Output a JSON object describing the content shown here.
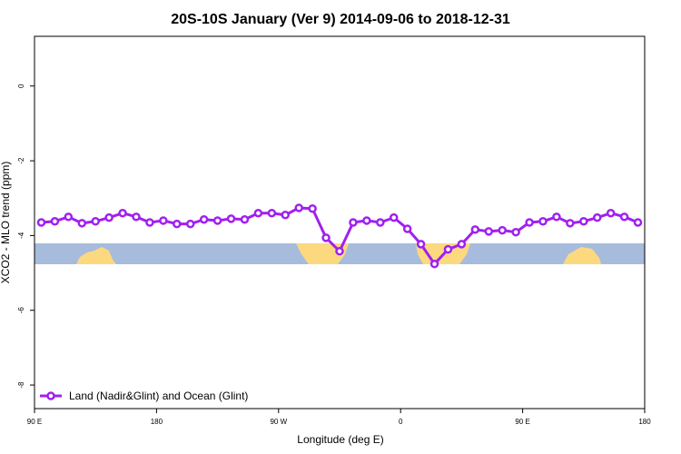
{
  "chart_data": {
    "type": "line",
    "title": "20S-10S January (Ver 9)   2014-09-06 to 2018-12-31",
    "x_label": "Longitude (deg E)",
    "y_label": "XCO2 - MLO trend (ppm)",
    "x": [
      95,
      105,
      115,
      125,
      135,
      145,
      155,
      165,
      175,
      185,
      195,
      205,
      215,
      225,
      235,
      245,
      255,
      265,
      275,
      285,
      295,
      305,
      315,
      325,
      335,
      345,
      355,
      365,
      375,
      385,
      395,
      405,
      415,
      425,
      435,
      445,
      455,
      465,
      475,
      485,
      495,
      505,
      515,
      525,
      535
    ],
    "series": [
      {
        "name": "Land (Nadir&Glint) and Ocean (Glint)",
        "color": "#a020f0",
        "values": [
          -3.65,
          -3.62,
          -3.5,
          -3.67,
          -3.62,
          -3.52,
          -3.4,
          -3.5,
          -3.65,
          -3.6,
          -3.69,
          -3.69,
          -3.57,
          -3.6,
          -3.55,
          -3.57,
          -3.4,
          -3.4,
          -3.45,
          -3.26,
          -3.28,
          -4.06,
          -4.42,
          -3.65,
          -3.6,
          -3.65,
          -3.52,
          -3.82,
          -4.23,
          -4.76,
          -4.37,
          -4.23,
          -3.84,
          -3.89,
          -3.86,
          -3.91,
          -3.65,
          -3.62,
          -3.5,
          -3.67,
          -3.62,
          -3.52,
          -3.4,
          -3.5,
          -3.65
        ]
      }
    ],
    "xlim": [
      90,
      540
    ],
    "xticks": [
      {
        "value": 90,
        "label": "90 E"
      },
      180,
      {
        "value": 270,
        "label": "90 W"
      },
      {
        "value": 360,
        "label": "0"
      },
      {
        "value": 450,
        "label": "90 E"
      },
      {
        "value": 540,
        "label": "180"
      }
    ],
    "ylim": [
      -8.63,
      1.33
    ],
    "yticks": [
      0,
      -2,
      -4,
      -6,
      -8
    ],
    "legend": "bottom-left"
  }
}
